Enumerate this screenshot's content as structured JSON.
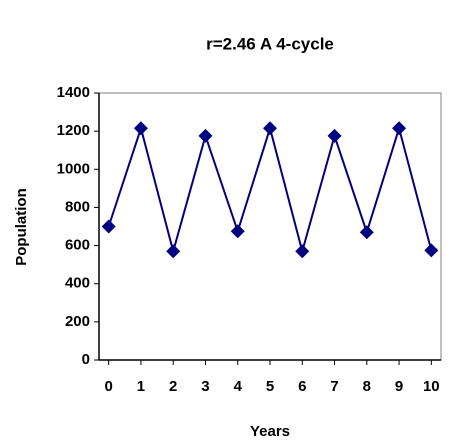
{
  "chart_data": {
    "type": "line",
    "title": "r=2.46  A 4-cycle",
    "xlabel": "Years",
    "ylabel": "Population",
    "x": [
      0,
      1,
      2,
      3,
      4,
      5,
      6,
      7,
      8,
      9,
      10
    ],
    "series": [
      {
        "name": "Population",
        "color": "#000080",
        "values": [
          700,
          1215,
          570,
          1175,
          675,
          1215,
          570,
          1175,
          670,
          1215,
          575
        ]
      }
    ],
    "xlim": [
      -0.3,
      10.3
    ],
    "xticks": [
      0,
      1,
      2,
      3,
      4,
      5,
      6,
      7,
      8,
      9,
      10
    ],
    "ylim": [
      0,
      1400
    ],
    "yticks": [
      0,
      200,
      400,
      600,
      800,
      1000,
      1200,
      1400
    ]
  }
}
